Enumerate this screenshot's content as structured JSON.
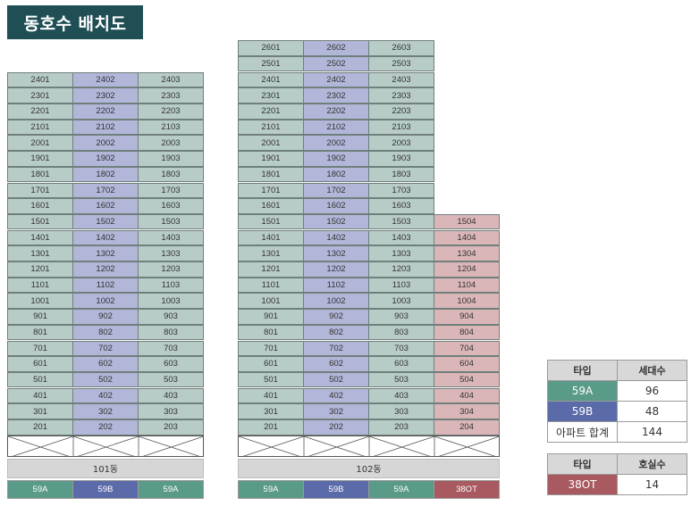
{
  "title": "동호수 배치도",
  "colors": {
    "59A": "#5a9a89",
    "59B": "#5b6aa8",
    "38OT": "#a85a60",
    "title_bg": "#1f4f55"
  },
  "buildings": [
    {
      "name": "101동",
      "floors": [
        24,
        23,
        22,
        21,
        20,
        19,
        18,
        17,
        16,
        15,
        14,
        13,
        12,
        11,
        10,
        9,
        8,
        7,
        6,
        5,
        4,
        3,
        2
      ],
      "lines": [
        {
          "line": "01",
          "type": "59A",
          "top_floor": 24
        },
        {
          "line": "02",
          "type": "59B",
          "top_floor": 24
        },
        {
          "line": "03",
          "type": "59A",
          "top_floor": 24
        }
      ]
    },
    {
      "name": "102동",
      "floors": [
        26,
        25,
        24,
        23,
        22,
        21,
        20,
        19,
        18,
        17,
        16,
        15,
        14,
        13,
        12,
        11,
        10,
        9,
        8,
        7,
        6,
        5,
        4,
        3,
        2
      ],
      "lines": [
        {
          "line": "01",
          "type": "59A",
          "top_floor": 26
        },
        {
          "line": "02",
          "type": "59B",
          "top_floor": 26
        },
        {
          "line": "03",
          "type": "59A",
          "top_floor": 26
        },
        {
          "line": "04",
          "type": "38OT",
          "top_floor": 15
        }
      ]
    }
  ],
  "legend_apartment": {
    "headers": [
      "타입",
      "세대수"
    ],
    "rows": [
      {
        "type": "59A",
        "count": "96"
      },
      {
        "type": "59B",
        "count": "48"
      }
    ],
    "total_label": "아파트 합계",
    "total": "144"
  },
  "legend_officetel": {
    "headers": [
      "타입",
      "호실수"
    ],
    "rows": [
      {
        "type": "38OT",
        "count": "14"
      }
    ]
  }
}
